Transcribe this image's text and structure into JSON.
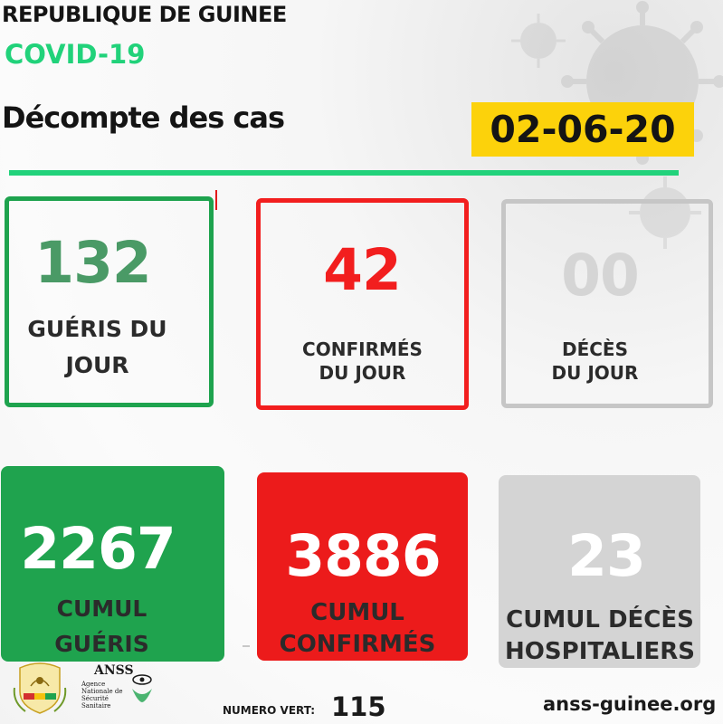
{
  "header": {
    "country": "REPUBLIQUE DE GUINEE",
    "subject": "COVID-19",
    "title": "Décompte des cas",
    "date": "02-06-20"
  },
  "daily": {
    "recovered": {
      "value": "132",
      "label_line1": "GUÉRIS DU",
      "label_line2": "JOUR"
    },
    "confirmed": {
      "value": "42",
      "label_line1": "CONFIRMÉS",
      "label_line2": "DU JOUR"
    },
    "deaths": {
      "value": "00",
      "label_line1": "DÉCÈS",
      "label_line2": "DU JOUR"
    }
  },
  "cumulative": {
    "recovered": {
      "value": "2267",
      "label_line1": "CUMUL",
      "label_line2": "GUÉRIS"
    },
    "confirmed": {
      "value": "3886",
      "label_line1": "CUMUL",
      "label_line2": "CONFIRMÉS"
    },
    "deaths": {
      "value": "23",
      "label_line1": "CUMUL DÉCÈS",
      "label_line2": "HOSPITALIERS"
    }
  },
  "footer": {
    "anss_acronym": "ANSS",
    "anss_line1": "Agence",
    "anss_line2": "Nationale de",
    "anss_line3": "Sécurité",
    "anss_line4": "Sanitaire",
    "hotline_label": "NUMERO VERT:",
    "hotline_number": "115",
    "website": "anss-guinee.org"
  },
  "colors": {
    "green": "#1fa34e",
    "red": "#ec1b1b",
    "grey": "#d4d4d4",
    "accent_green": "#22d27b",
    "date_yellow": "#fcd20b"
  }
}
